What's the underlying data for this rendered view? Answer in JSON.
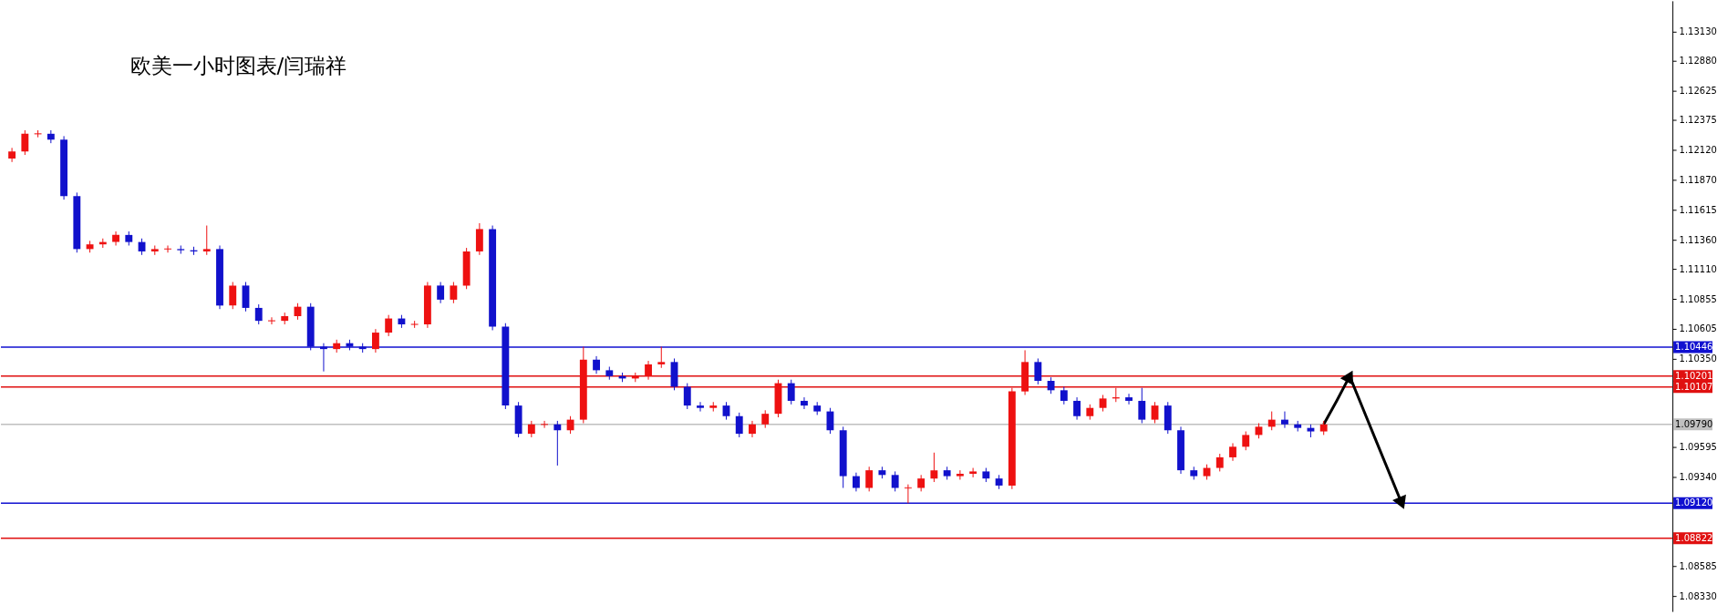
{
  "chart_data": {
    "type": "candlestick",
    "title": "欧美一小时图表/闫瑞祥",
    "categories": [
      null,
      null,
      null,
      null,
      null,
      null,
      null,
      null,
      null,
      null,
      null,
      null,
      null,
      null,
      null,
      null,
      null,
      null,
      null,
      null,
      null,
      null,
      null,
      null,
      null,
      null,
      null,
      null,
      null,
      null,
      null,
      null,
      null,
      null,
      null,
      null,
      null,
      null,
      null,
      null,
      null,
      null,
      null,
      null,
      null,
      null,
      null,
      null,
      null,
      null,
      null,
      null,
      null,
      null,
      null,
      null,
      null,
      null,
      null,
      null,
      null,
      null,
      null,
      null,
      null,
      null,
      null,
      null,
      null,
      null,
      null,
      null,
      null,
      null,
      null,
      null,
      null,
      null,
      null,
      null,
      null,
      null,
      null,
      null,
      null,
      null,
      null,
      null,
      null,
      null,
      null,
      null,
      null,
      null,
      null,
      null,
      null,
      null,
      null,
      null,
      null,
      null,
      null,
      null,
      null,
      null,
      null,
      null,
      null,
      null,
      null,
      null,
      null,
      null,
      null,
      null,
      null,
      null,
      null,
      null,
      null,
      null,
      null,
      null,
      null,
      null,
      null,
      null
    ],
    "ohlc": [
      [
        1.1205,
        1.1214,
        1.1202,
        1.1211
      ],
      [
        1.1211,
        1.1229,
        1.1208,
        1.1226
      ],
      [
        1.1226,
        1.1229,
        1.1223,
        1.1226
      ],
      [
        1.1226,
        1.1229,
        1.1218,
        1.1221
      ],
      [
        1.1221,
        1.1224,
        1.117,
        1.1173
      ],
      [
        1.1173,
        1.1176,
        1.1125,
        1.1128
      ],
      [
        1.1128,
        1.1135,
        1.1125,
        1.1132
      ],
      [
        1.1132,
        1.1137,
        1.1129,
        1.1134
      ],
      [
        1.1134,
        1.1143,
        1.1131,
        1.114
      ],
      [
        1.114,
        1.1143,
        1.1131,
        1.1134
      ],
      [
        1.1134,
        1.1137,
        1.1123,
        1.1126
      ],
      [
        1.1126,
        1.1131,
        1.1123,
        1.1128
      ],
      [
        1.1128,
        1.1131,
        1.1125,
        1.1128
      ],
      [
        1.1128,
        1.1131,
        1.1124,
        1.1127
      ],
      [
        1.1127,
        1.113,
        1.1123,
        1.1126
      ],
      [
        1.1126,
        1.1148,
        1.1123,
        1.1128
      ],
      [
        1.1128,
        1.1131,
        1.1077,
        1.108
      ],
      [
        1.108,
        1.11,
        1.1077,
        1.1097
      ],
      [
        1.1097,
        1.11,
        1.1075,
        1.1078
      ],
      [
        1.1078,
        1.1081,
        1.1064,
        1.1067
      ],
      [
        1.1067,
        1.107,
        1.1064,
        1.1067
      ],
      [
        1.1067,
        1.1074,
        1.1064,
        1.1071
      ],
      [
        1.1071,
        1.1082,
        1.1068,
        1.1079
      ],
      [
        1.1079,
        1.1082,
        1.1042,
        1.1045
      ],
      [
        1.1045,
        1.1048,
        1.1024,
        1.1043
      ],
      [
        1.1043,
        1.1051,
        1.104,
        1.1048
      ],
      [
        1.1048,
        1.1051,
        1.1042,
        1.1045
      ],
      [
        1.1045,
        1.1048,
        1.104,
        1.1043
      ],
      [
        1.1043,
        1.106,
        1.104,
        1.1057
      ],
      [
        1.1057,
        1.1072,
        1.1054,
        1.1069
      ],
      [
        1.1069,
        1.1072,
        1.1061,
        1.1064
      ],
      [
        1.1064,
        1.1067,
        1.1061,
        1.1064
      ],
      [
        1.1064,
        1.11,
        1.1061,
        1.1097
      ],
      [
        1.1097,
        1.11,
        1.1082,
        1.1085
      ],
      [
        1.1085,
        1.11,
        1.1082,
        1.1097
      ],
      [
        1.1097,
        1.1129,
        1.1094,
        1.1126
      ],
      [
        1.1126,
        1.115,
        1.1123,
        1.1145
      ],
      [
        1.1145,
        1.1148,
        1.1059,
        1.1062
      ],
      [
        1.1062,
        1.1065,
        1.0992,
        1.0995
      ],
      [
        1.0995,
        1.0998,
        1.0968,
        1.0971
      ],
      [
        1.0971,
        1.0982,
        1.0968,
        1.0979
      ],
      [
        1.0979,
        1.0982,
        1.0976,
        1.0979
      ],
      [
        1.0979,
        1.0982,
        1.0944,
        1.0974
      ],
      [
        1.0974,
        1.0986,
        1.0971,
        1.0983
      ],
      [
        1.0983,
        1.1045,
        1.098,
        1.1034
      ],
      [
        1.1034,
        1.1037,
        1.1022,
        1.1025
      ],
      [
        1.1025,
        1.1028,
        1.1017,
        1.102
      ],
      [
        1.102,
        1.1023,
        1.1015,
        1.1018
      ],
      [
        1.1018,
        1.1023,
        1.1015,
        1.102
      ],
      [
        1.102,
        1.1033,
        1.1017,
        1.103
      ],
      [
        1.103,
        1.1045,
        1.1027,
        1.1032
      ],
      [
        1.1032,
        1.1035,
        1.1008,
        1.1011
      ],
      [
        1.1011,
        1.1014,
        1.0992,
        1.0995
      ],
      [
        1.0995,
        1.0998,
        1.099,
        1.0993
      ],
      [
        1.0993,
        1.0998,
        1.099,
        1.0995
      ],
      [
        1.0995,
        1.0998,
        1.0983,
        1.0986
      ],
      [
        1.0986,
        1.0989,
        1.0968,
        1.0971
      ],
      [
        1.0971,
        1.0982,
        1.0968,
        1.0979
      ],
      [
        1.0979,
        1.0991,
        1.0976,
        1.0988
      ],
      [
        1.0988,
        1.1017,
        1.0985,
        1.1014
      ],
      [
        1.1014,
        1.1017,
        1.0996,
        1.0999
      ],
      [
        1.0999,
        1.1002,
        1.0992,
        1.0995
      ],
      [
        1.0995,
        1.0998,
        1.0987,
        1.099
      ],
      [
        1.099,
        1.0993,
        1.0971,
        1.0974
      ],
      [
        1.0974,
        1.0977,
        1.0925,
        1.0935
      ],
      [
        1.0935,
        1.0938,
        1.0922,
        1.0925
      ],
      [
        1.0925,
        1.0943,
        1.0922,
        1.094
      ],
      [
        1.094,
        1.0943,
        1.0933,
        1.0936
      ],
      [
        1.0936,
        1.0939,
        1.0922,
        1.0925
      ],
      [
        1.0925,
        1.0928,
        1.0912,
        1.0925
      ],
      [
        1.0925,
        1.0936,
        1.0922,
        1.0933
      ],
      [
        1.0933,
        1.0955,
        1.093,
        1.094
      ],
      [
        1.094,
        1.0943,
        1.0932,
        1.0935
      ],
      [
        1.0935,
        1.094,
        1.0932,
        1.0937
      ],
      [
        1.0937,
        1.0942,
        1.0934,
        1.0939
      ],
      [
        1.0939,
        1.0942,
        1.093,
        1.0933
      ],
      [
        1.0933,
        1.0936,
        1.0924,
        1.0927
      ],
      [
        1.0927,
        1.101,
        1.0924,
        1.1007
      ],
      [
        1.1007,
        1.1042,
        1.1004,
        1.1032
      ],
      [
        1.1032,
        1.1035,
        1.1013,
        1.1016
      ],
      [
        1.1016,
        1.1019,
        1.1005,
        1.1008
      ],
      [
        1.1008,
        1.1011,
        1.0996,
        1.0999
      ],
      [
        1.0999,
        1.1002,
        1.0983,
        1.0986
      ],
      [
        1.0986,
        1.0996,
        1.0983,
        1.0993
      ],
      [
        1.0993,
        1.1004,
        1.099,
        1.1001
      ],
      [
        1.1001,
        1.101,
        1.0998,
        1.1002
      ],
      [
        1.1002,
        1.1005,
        1.0996,
        1.0999
      ],
      [
        1.0999,
        1.101,
        1.098,
        1.0983
      ],
      [
        1.0983,
        1.0998,
        1.098,
        1.0995
      ],
      [
        1.0995,
        1.0998,
        1.0971,
        1.0974
      ],
      [
        1.0974,
        1.0977,
        1.0937,
        1.094
      ],
      [
        1.094,
        1.0943,
        1.0932,
        1.0935
      ],
      [
        1.0935,
        1.0945,
        1.0932,
        1.0942
      ],
      [
        1.0942,
        1.0954,
        1.0939,
        1.0951
      ],
      [
        1.0951,
        1.0963,
        1.0948,
        1.096
      ],
      [
        1.096,
        1.0973,
        1.0957,
        1.097
      ],
      [
        1.097,
        1.098,
        1.0967,
        1.0977
      ],
      [
        1.0977,
        1.099,
        1.0974,
        1.0983
      ],
      [
        1.0983,
        1.099,
        1.0976,
        1.0979
      ],
      [
        1.0979,
        1.0982,
        1.0973,
        1.0976
      ],
      [
        1.0976,
        1.0979,
        1.0968,
        1.0973
      ],
      [
        1.0973,
        1.0982,
        1.097,
        1.0979
      ],
      null,
      null,
      null,
      null,
      null,
      null,
      null,
      null,
      null,
      null,
      null,
      null,
      null,
      null,
      null,
      null,
      null,
      null,
      null,
      null,
      null,
      null,
      null,
      null,
      null,
      null
    ],
    "colors": [
      "#ee1111",
      "#ee1111",
      "#ee1111",
      "#1111cc",
      "#1111cc",
      "#1111cc",
      "#ee1111",
      "#ee1111",
      "#ee1111",
      "#1111cc",
      "#1111cc",
      "#ee1111",
      "#ee1111",
      "#1111cc",
      "#1111cc",
      "#ee1111",
      "#1111cc",
      "#ee1111",
      "#1111cc",
      "#1111cc",
      "#ee1111",
      "#ee1111",
      "#ee1111",
      "#1111cc",
      "#1111cc",
      "#ee1111",
      "#1111cc",
      "#1111cc",
      "#ee1111",
      "#ee1111",
      "#1111cc",
      "#ee1111",
      "#ee1111",
      "#1111cc",
      "#ee1111",
      "#ee1111",
      "#ee1111",
      "#1111cc",
      "#1111cc",
      "#1111cc",
      "#ee1111",
      "#ee1111",
      "#1111cc",
      "#ee1111",
      "#ee1111",
      "#1111cc",
      "#1111cc",
      "#1111cc",
      "#ee1111",
      "#ee1111",
      "#ee1111",
      "#1111cc",
      "#1111cc",
      "#1111cc",
      "#ee1111",
      "#1111cc",
      "#1111cc",
      "#ee1111",
      "#ee1111",
      "#ee1111",
      "#1111cc",
      "#1111cc",
      "#1111cc",
      "#1111cc",
      "#1111cc",
      "#1111cc",
      "#ee1111",
      "#1111cc",
      "#1111cc",
      "#ee1111",
      "#ee1111",
      "#ee1111",
      "#1111cc",
      "#ee1111",
      "#ee1111",
      "#1111cc",
      "#1111cc",
      "#ee1111",
      "#ee1111",
      "#1111cc",
      "#1111cc",
      "#1111cc",
      "#1111cc",
      "#ee1111",
      "#ee1111",
      "#ee1111",
      "#1111cc",
      "#1111cc",
      "#ee1111",
      "#1111cc",
      "#1111cc",
      "#1111cc",
      "#ee1111",
      "#ee1111",
      "#ee1111",
      "#ee1111",
      "#ee1111",
      "#ee1111",
      "#1111cc",
      "#1111cc",
      "#1111cc",
      "#ee1111",
      null,
      null,
      null,
      null,
      null,
      null,
      null,
      null,
      null,
      null,
      null,
      null,
      null,
      null,
      null,
      null,
      null,
      null,
      null,
      null,
      null,
      null,
      null,
      null,
      null,
      null
    ],
    "series": [
      {
        "type": "line",
        "color": "#000000",
        "values": [
          null,
          null,
          null,
          null,
          null,
          null,
          null,
          null,
          null,
          null,
          null,
          null,
          null,
          null,
          null,
          null,
          null,
          null,
          null,
          null,
          null,
          null,
          null,
          null,
          null,
          null,
          null,
          null,
          null,
          null,
          null,
          null,
          null,
          null,
          null,
          null,
          null,
          null,
          null,
          null,
          null,
          null,
          null,
          null,
          null,
          null,
          null,
          null,
          null,
          null,
          null,
          null,
          null,
          null,
          null,
          null,
          null,
          null,
          null,
          null,
          null,
          null,
          null,
          null,
          null,
          null,
          null,
          null,
          null,
          null,
          null,
          null,
          null,
          null,
          null,
          null,
          null,
          null,
          null,
          null,
          null,
          null,
          null,
          null,
          null,
          null,
          null,
          null,
          null,
          null,
          null,
          null,
          null,
          null,
          null,
          null,
          null,
          null,
          null,
          null,
          null,
          1.0979,
          1.0999,
          1.102,
          1.0993,
          1.0966,
          1.0939,
          1.0912,
          null,
          null,
          null,
          null,
          null,
          null,
          null,
          null,
          null,
          null,
          null,
          null,
          null,
          null,
          null,
          null,
          null,
          null,
          null,
          null
        ]
      }
    ],
    "ylim": [
      1.082,
      1.1339
    ],
    "yticks": [
      {
        "value": 1.1313,
        "label": "1.13130"
      },
      {
        "value": 1.1288,
        "label": "1.12880"
      },
      1.12625,
      1.12375,
      {
        "value": 1.1212,
        "label": "1.12120"
      },
      {
        "value": 1.1187,
        "label": "1.11870"
      },
      1.11615,
      {
        "value": 1.1136,
        "label": "1.11360"
      },
      {
        "value": 1.1111,
        "label": "1.11110"
      },
      1.10855,
      1.10605,
      {
        "value": 1.1035,
        "label": "1.10350"
      },
      1.09595,
      {
        "value": 1.0934,
        "label": "1.09340"
      },
      1.08585,
      {
        "value": 1.0833,
        "label": "1.08330"
      }
    ],
    "tick_labels": "y",
    "ref_lines": [
      {
        "axis": "y",
        "value": 1.10446,
        "label": "1.10446",
        "color": "#1010d0"
      },
      {
        "axis": "y",
        "value": 1.10201,
        "label": "1.10201",
        "color": "#e01010"
      },
      {
        "axis": "y",
        "value": 1.10107,
        "label": "1.10107",
        "color": "#e01010"
      },
      {
        "axis": "y",
        "value": 1.0979,
        "label": "1.09790",
        "color": "#c0c0c0"
      },
      {
        "axis": "y",
        "value": 1.0912,
        "label": "1.09120",
        "color": "#1010d0"
      },
      {
        "axis": "y",
        "value": 1.08822,
        "label": "1.08822",
        "color": "#e01010"
      }
    ]
  }
}
